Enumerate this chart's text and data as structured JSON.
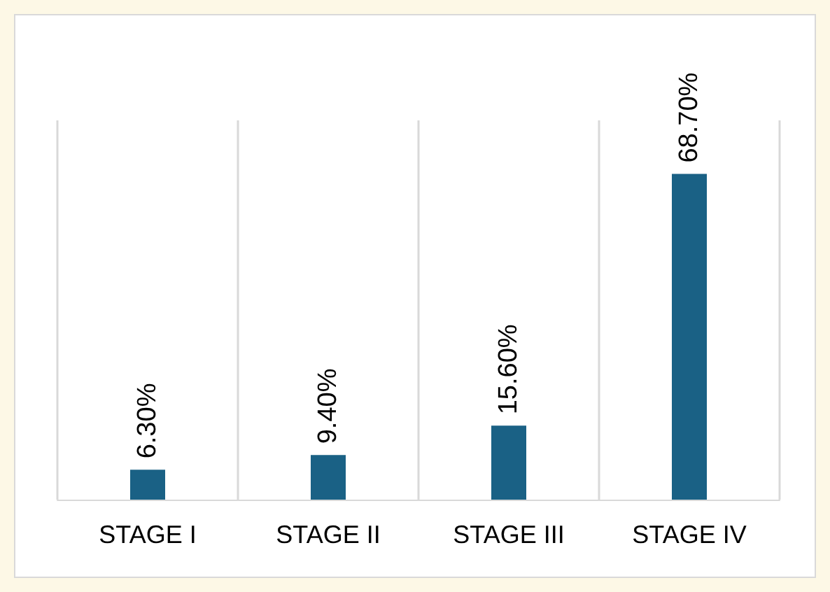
{
  "chart_data": {
    "type": "bar",
    "categories": [
      "STAGE I",
      "STAGE II",
      "STAGE III",
      "STAGE IV"
    ],
    "values": [
      6.3,
      9.4,
      15.6,
      68.7
    ],
    "value_labels": [
      "6.30%",
      "9.40%",
      "15.60%",
      "68.70%"
    ],
    "color": "#1a6185",
    "ylim": [
      0,
      80
    ],
    "grid": "x",
    "tick_labels": "x"
  }
}
